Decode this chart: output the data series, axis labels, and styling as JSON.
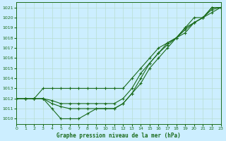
{
  "title": "Graphe pression niveau de la mer (hPa)",
  "bg_color": "#cceeff",
  "grid_color": "#b8ddd0",
  "line_color": "#1a6b1a",
  "xlim": [
    0,
    23
  ],
  "ylim": [
    1009.5,
    1021.5
  ],
  "xticks": [
    0,
    1,
    2,
    3,
    4,
    5,
    6,
    7,
    8,
    9,
    10,
    11,
    12,
    13,
    14,
    15,
    16,
    17,
    18,
    19,
    20,
    21,
    22,
    23
  ],
  "yticks": [
    1010,
    1011,
    1012,
    1013,
    1014,
    1015,
    1016,
    1017,
    1018,
    1019,
    1020,
    1021
  ],
  "series": [
    [
      1012,
      1012,
      1012,
      1012,
      1011,
      1010,
      1010,
      1010,
      1010.5,
      1011,
      1011,
      1011,
      1011.5,
      1012.5,
      1013.5,
      1015,
      1016,
      1017,
      1018,
      1019,
      1020,
      1020,
      1021,
      1021
    ],
    [
      1012,
      1012,
      1012,
      1012,
      1011.5,
      1011.2,
      1011,
      1011,
      1011,
      1011,
      1011,
      1011,
      1011.5,
      1012.5,
      1014,
      1015.5,
      1016.5,
      1017.5,
      1018,
      1019,
      1019.5,
      1020,
      1020.5,
      1021
    ],
    [
      1012,
      1012,
      1012,
      1012,
      1011.8,
      1011.5,
      1011.5,
      1011.5,
      1011.5,
      1011.5,
      1011.5,
      1011.5,
      1012,
      1013,
      1014.5,
      1015.5,
      1016.5,
      1017.3,
      1018,
      1018.8,
      1019.5,
      1020,
      1020.8,
      1021
    ],
    [
      1012,
      1012,
      1012,
      1013,
      1013,
      1013,
      1013,
      1013,
      1013,
      1013,
      1013,
      1013,
      1013,
      1014,
      1015,
      1016,
      1017,
      1017.5,
      1018,
      1018.5,
      1019.5,
      1020,
      1021,
      1021
    ]
  ]
}
